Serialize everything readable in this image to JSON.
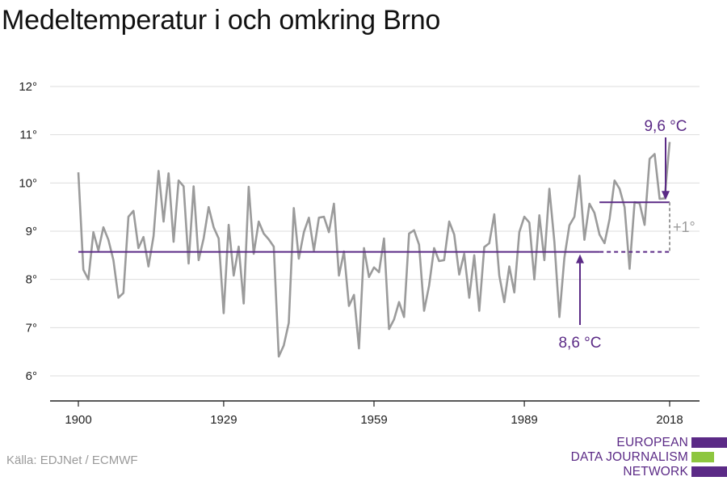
{
  "title": "Medeltemperatur i och omkring Brno",
  "source": "Källa: EDJNet / ECMWF",
  "logo": {
    "lines": [
      "EUROPEAN",
      "DATA JOURNALISM",
      "NETWORK"
    ],
    "colors": [
      "#5b2a86",
      "#8dc63f",
      "#5b2a86"
    ]
  },
  "chart_data": {
    "type": "line",
    "ylim": [
      5.5,
      12.3
    ],
    "xlim": [
      1897,
      2024
    ],
    "yticks": [
      6,
      7,
      8,
      9,
      10,
      11,
      12
    ],
    "ytick_labels": [
      "6°",
      "7°",
      "8°",
      "9°",
      "10°",
      "11°",
      "12°"
    ],
    "xticks": [
      1900,
      1929,
      1959,
      1989,
      2018
    ],
    "xtick_labels": [
      "1900",
      "1929",
      "1959",
      "1989",
      "2018"
    ],
    "grid": true,
    "series": [
      {
        "color": "#9b9b9b",
        "x": [
          1900,
          1901,
          1902,
          1903,
          1904,
          1905,
          1906,
          1907,
          1908,
          1909,
          1910,
          1911,
          1912,
          1913,
          1914,
          1915,
          1916,
          1917,
          1918,
          1919,
          1920,
          1921,
          1922,
          1923,
          1924,
          1925,
          1926,
          1927,
          1928,
          1929,
          1930,
          1931,
          1932,
          1933,
          1934,
          1935,
          1936,
          1937,
          1938,
          1939,
          1940,
          1941,
          1942,
          1943,
          1944,
          1945,
          1946,
          1947,
          1948,
          1949,
          1950,
          1951,
          1952,
          1953,
          1954,
          1955,
          1956,
          1957,
          1958,
          1959,
          1960,
          1961,
          1962,
          1963,
          1964,
          1965,
          1966,
          1967,
          1968,
          1969,
          1970,
          1971,
          1972,
          1973,
          1974,
          1975,
          1976,
          1977,
          1978,
          1979,
          1980,
          1981,
          1982,
          1983,
          1984,
          1985,
          1986,
          1987,
          1988,
          1989,
          1990,
          1991,
          1992,
          1993,
          1994,
          1995,
          1996,
          1997,
          1998,
          1999,
          2000,
          2001,
          2002,
          2003,
          2004,
          2005,
          2006,
          2007,
          2008,
          2009,
          2010,
          2011,
          2012,
          2013,
          2014,
          2015,
          2016,
          2017,
          2018
        ],
        "values": [
          10.22,
          8.2,
          8.0,
          8.98,
          8.6,
          9.08,
          8.82,
          8.4,
          7.62,
          7.72,
          9.3,
          9.42,
          8.65,
          8.88,
          8.27,
          8.9,
          10.25,
          9.2,
          10.2,
          8.78,
          10.05,
          9.93,
          8.33,
          9.93,
          8.4,
          8.85,
          9.5,
          9.08,
          8.85,
          7.3,
          9.13,
          8.08,
          8.68,
          7.5,
          9.92,
          8.53,
          9.2,
          8.95,
          8.83,
          8.68,
          6.4,
          6.63,
          7.1,
          9.48,
          8.43,
          8.98,
          9.28,
          8.6,
          9.28,
          9.3,
          8.98,
          9.57,
          8.08,
          8.58,
          7.45,
          7.68,
          6.57,
          8.65,
          8.05,
          8.25,
          8.15,
          8.85,
          6.97,
          7.17,
          7.53,
          7.22,
          8.95,
          9.02,
          8.72,
          7.35,
          7.87,
          8.65,
          8.38,
          8.4,
          9.2,
          8.93,
          8.1,
          8.53,
          7.62,
          8.5,
          7.35,
          8.67,
          8.75,
          9.35,
          8.08,
          7.53,
          8.27,
          7.73,
          8.98,
          9.3,
          9.18,
          8.0,
          9.33,
          8.4,
          9.88,
          8.78,
          7.22,
          8.45,
          9.12,
          9.3,
          10.15,
          8.82,
          9.57,
          9.38,
          8.93,
          8.75,
          9.25,
          10.05,
          9.88,
          9.5,
          8.22,
          9.6,
          9.58,
          9.13,
          10.5,
          10.6,
          9.67,
          9.68,
          10.85
        ]
      }
    ],
    "reference_lines": [
      {
        "label": "8,6 °C",
        "value": 8.57,
        "from": 1900,
        "to": 2018,
        "dashed_from": 2004
      },
      {
        "label": "9,6 °C",
        "value": 9.6,
        "from": 2004,
        "to": 2018
      }
    ],
    "difference_label": "+1°",
    "accent_color": "#5b2a86",
    "difference_color": "#9b9b9b"
  }
}
